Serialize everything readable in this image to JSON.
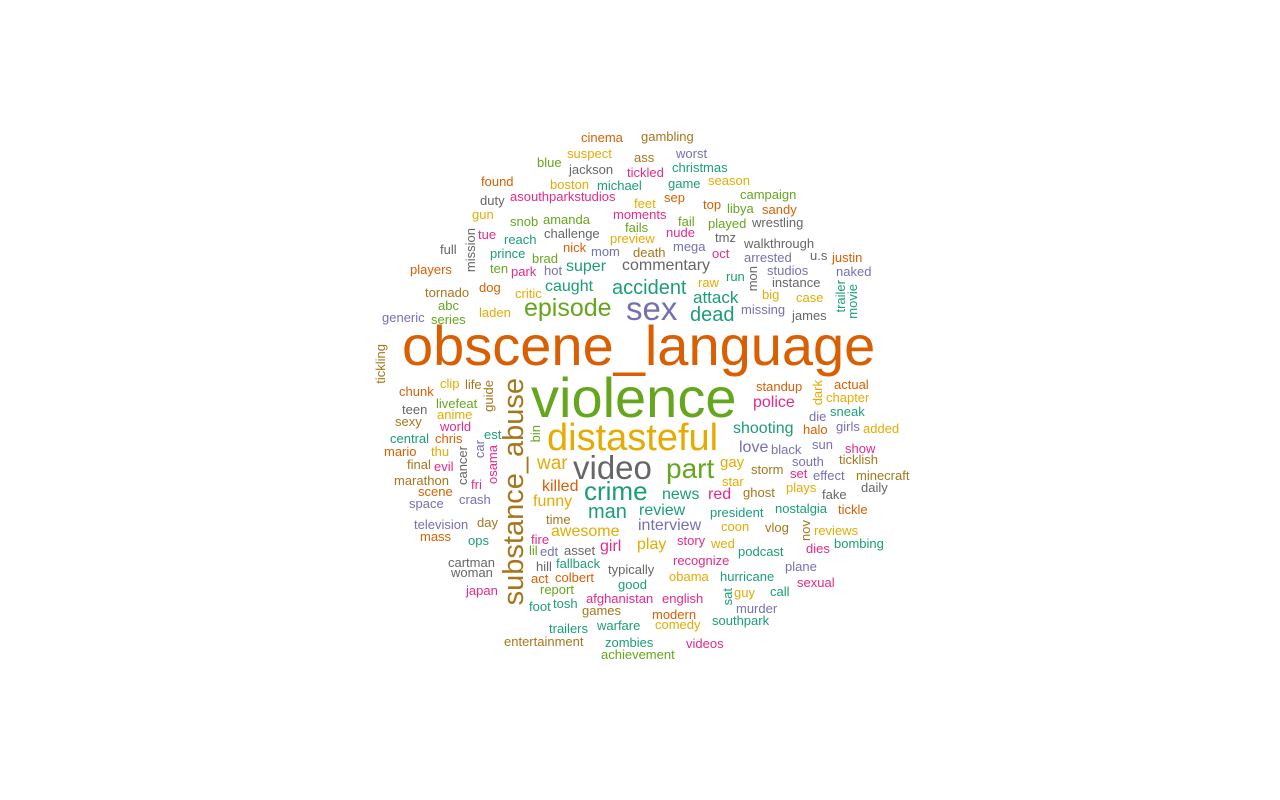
{
  "palette": {
    "orange": "#d95f02",
    "green": "#66a61e",
    "purple": "#7570b3",
    "gold": "#e6ab02",
    "teal": "#1b9e77",
    "pink": "#e7298a",
    "brown": "#a6761d",
    "gray": "#666666"
  },
  "words": [
    {
      "text": "obscene_language",
      "c": "orange"
    },
    {
      "text": "violence",
      "c": "green"
    },
    {
      "text": "distasteful",
      "c": "gold"
    },
    {
      "text": "substance_abuse",
      "c": "brown"
    },
    {
      "text": "video",
      "c": "gray"
    },
    {
      "text": "sex",
      "c": "purple"
    },
    {
      "text": "part",
      "c": "green"
    },
    {
      "text": "crime",
      "c": "teal"
    },
    {
      "text": "episode",
      "c": "green"
    },
    {
      "text": "accident",
      "c": "teal"
    },
    {
      "text": "man",
      "c": "teal"
    },
    {
      "text": "dead",
      "c": "teal"
    },
    {
      "text": "war",
      "c": "gold"
    },
    {
      "text": "commentary",
      "c": "gray"
    },
    {
      "text": "attack",
      "c": "teal"
    },
    {
      "text": "caught",
      "c": "teal"
    },
    {
      "text": "super",
      "c": "teal"
    },
    {
      "text": "killed",
      "c": "orange"
    },
    {
      "text": "funny",
      "c": "gold"
    },
    {
      "text": "awesome",
      "c": "gold"
    },
    {
      "text": "interview",
      "c": "purple"
    },
    {
      "text": "review",
      "c": "teal"
    },
    {
      "text": "news",
      "c": "teal"
    },
    {
      "text": "red",
      "c": "pink"
    },
    {
      "text": "girl",
      "c": "pink"
    },
    {
      "text": "play",
      "c": "gold"
    },
    {
      "text": "police",
      "c": "pink"
    },
    {
      "text": "shooting",
      "c": "teal"
    },
    {
      "text": "love",
      "c": "purple"
    },
    {
      "text": "gay",
      "c": "gold"
    },
    {
      "text": "cinema",
      "c": "orange"
    },
    {
      "text": "gambling",
      "c": "brown"
    },
    {
      "text": "blue",
      "c": "green"
    },
    {
      "text": "suspect",
      "c": "gold"
    },
    {
      "text": "ass",
      "c": "brown"
    },
    {
      "text": "worst",
      "c": "purple"
    },
    {
      "text": "jackson",
      "c": "gray"
    },
    {
      "text": "tickled",
      "c": "pink"
    },
    {
      "text": "christmas",
      "c": "teal"
    },
    {
      "text": "found",
      "c": "orange"
    },
    {
      "text": "boston",
      "c": "gold"
    },
    {
      "text": "michael",
      "c": "teal"
    },
    {
      "text": "game",
      "c": "teal"
    },
    {
      "text": "season",
      "c": "gold"
    },
    {
      "text": "duty",
      "c": "gray"
    },
    {
      "text": "asouthparkstudios",
      "c": "pink"
    },
    {
      "text": "sep",
      "c": "orange"
    },
    {
      "text": "campaign",
      "c": "green"
    },
    {
      "text": "gun",
      "c": "gold"
    },
    {
      "text": "feet",
      "c": "gold"
    },
    {
      "text": "top",
      "c": "orange"
    },
    {
      "text": "sandy",
      "c": "orange"
    },
    {
      "text": "snob",
      "c": "green"
    },
    {
      "text": "amanda",
      "c": "green"
    },
    {
      "text": "moments",
      "c": "pink"
    },
    {
      "text": "libya",
      "c": "green"
    },
    {
      "text": "fail",
      "c": "green"
    },
    {
      "text": "played",
      "c": "green"
    },
    {
      "text": "wrestling",
      "c": "gray"
    },
    {
      "text": "tue",
      "c": "pink"
    },
    {
      "text": "challenge",
      "c": "gray"
    },
    {
      "text": "fails",
      "c": "green"
    },
    {
      "text": "nude",
      "c": "pink"
    },
    {
      "text": "reach",
      "c": "teal"
    },
    {
      "text": "preview",
      "c": "gold"
    },
    {
      "text": "tmz",
      "c": "gray"
    },
    {
      "text": "full",
      "c": "gray"
    },
    {
      "text": "mission",
      "c": "gray"
    },
    {
      "text": "nick",
      "c": "orange"
    },
    {
      "text": "mega",
      "c": "purple"
    },
    {
      "text": "walkthrough",
      "c": "gray"
    },
    {
      "text": "prince",
      "c": "teal"
    },
    {
      "text": "brad",
      "c": "green"
    },
    {
      "text": "mom",
      "c": "purple"
    },
    {
      "text": "death",
      "c": "brown"
    },
    {
      "text": "oct",
      "c": "pink"
    },
    {
      "text": "arrested",
      "c": "purple"
    },
    {
      "text": "u.s",
      "c": "gray"
    },
    {
      "text": "justin",
      "c": "orange"
    },
    {
      "text": "players",
      "c": "orange"
    },
    {
      "text": "ten",
      "c": "green"
    },
    {
      "text": "park",
      "c": "pink"
    },
    {
      "text": "hot",
      "c": "purple"
    },
    {
      "text": "run",
      "c": "teal"
    },
    {
      "text": "studios",
      "c": "purple"
    },
    {
      "text": "naked",
      "c": "purple"
    },
    {
      "text": "mon",
      "c": "gray"
    },
    {
      "text": "raw",
      "c": "gold"
    },
    {
      "text": "instance",
      "c": "gray"
    },
    {
      "text": "tornado",
      "c": "brown"
    },
    {
      "text": "dog",
      "c": "orange"
    },
    {
      "text": "critic",
      "c": "gold"
    },
    {
      "text": "big",
      "c": "gold"
    },
    {
      "text": "case",
      "c": "gold"
    },
    {
      "text": "trailer",
      "c": "teal"
    },
    {
      "text": "movie",
      "c": "teal"
    },
    {
      "text": "abc",
      "c": "green"
    },
    {
      "text": "missing",
      "c": "purple"
    },
    {
      "text": "james",
      "c": "gray"
    },
    {
      "text": "generic",
      "c": "purple"
    },
    {
      "text": "series",
      "c": "green"
    },
    {
      "text": "laden",
      "c": "gold"
    },
    {
      "text": "tickling",
      "c": "brown"
    },
    {
      "text": "clip",
      "c": "gold"
    },
    {
      "text": "life",
      "c": "brown"
    },
    {
      "text": "standup",
      "c": "orange"
    },
    {
      "text": "actual",
      "c": "orange"
    },
    {
      "text": "chunk",
      "c": "orange"
    },
    {
      "text": "guide",
      "c": "brown"
    },
    {
      "text": "dark",
      "c": "gold"
    },
    {
      "text": "chapter",
      "c": "gold"
    },
    {
      "text": "livefeat",
      "c": "green"
    },
    {
      "text": "die",
      "c": "purple"
    },
    {
      "text": "sneak",
      "c": "teal"
    },
    {
      "text": "teen",
      "c": "gray"
    },
    {
      "text": "anime",
      "c": "gold"
    },
    {
      "text": "girls",
      "c": "purple"
    },
    {
      "text": "added",
      "c": "gold"
    },
    {
      "text": "sexy",
      "c": "brown"
    },
    {
      "text": "world",
      "c": "pink"
    },
    {
      "text": "halo",
      "c": "orange"
    },
    {
      "text": "bin",
      "c": "green"
    },
    {
      "text": "central",
      "c": "teal"
    },
    {
      "text": "chris",
      "c": "orange"
    },
    {
      "text": "est",
      "c": "teal"
    },
    {
      "text": "sun",
      "c": "purple"
    },
    {
      "text": "show",
      "c": "pink"
    },
    {
      "text": "black",
      "c": "purple"
    },
    {
      "text": "mario",
      "c": "orange"
    },
    {
      "text": "thu",
      "c": "gold"
    },
    {
      "text": "car",
      "c": "purple"
    },
    {
      "text": "ticklish",
      "c": "brown"
    },
    {
      "text": "final",
      "c": "brown"
    },
    {
      "text": "evil",
      "c": "pink"
    },
    {
      "text": "cancer",
      "c": "gray"
    },
    {
      "text": "osama",
      "c": "pink"
    },
    {
      "text": "south",
      "c": "purple"
    },
    {
      "text": "storm",
      "c": "brown"
    },
    {
      "text": "minecraft",
      "c": "brown"
    },
    {
      "text": "marathon",
      "c": "brown"
    },
    {
      "text": "star",
      "c": "gold"
    },
    {
      "text": "effect",
      "c": "purple"
    },
    {
      "text": "set",
      "c": "pink"
    },
    {
      "text": "scene",
      "c": "orange"
    },
    {
      "text": "fri",
      "c": "pink"
    },
    {
      "text": "plays",
      "c": "gold"
    },
    {
      "text": "daily",
      "c": "gray"
    },
    {
      "text": "ghost",
      "c": "brown"
    },
    {
      "text": "fake",
      "c": "gray"
    },
    {
      "text": "space",
      "c": "purple"
    },
    {
      "text": "crash",
      "c": "purple"
    },
    {
      "text": "president",
      "c": "teal"
    },
    {
      "text": "nostalgia",
      "c": "teal"
    },
    {
      "text": "tickle",
      "c": "orange"
    },
    {
      "text": "time",
      "c": "brown"
    },
    {
      "text": "coon",
      "c": "gold"
    },
    {
      "text": "vlog",
      "c": "brown"
    },
    {
      "text": "nov",
      "c": "brown"
    },
    {
      "text": "reviews",
      "c": "gold"
    },
    {
      "text": "television",
      "c": "purple"
    },
    {
      "text": "day",
      "c": "brown"
    },
    {
      "text": "mass",
      "c": "orange"
    },
    {
      "text": "ops",
      "c": "teal"
    },
    {
      "text": "fire",
      "c": "pink"
    },
    {
      "text": "story",
      "c": "pink"
    },
    {
      "text": "wed",
      "c": "gold"
    },
    {
      "text": "bombing",
      "c": "teal"
    },
    {
      "text": "lil",
      "c": "green"
    },
    {
      "text": "edt",
      "c": "purple"
    },
    {
      "text": "asset",
      "c": "gray"
    },
    {
      "text": "podcast",
      "c": "teal"
    },
    {
      "text": "dies",
      "c": "pink"
    },
    {
      "text": "cartman",
      "c": "gray"
    },
    {
      "text": "fallback",
      "c": "teal"
    },
    {
      "text": "recognize",
      "c": "pink"
    },
    {
      "text": "woman",
      "c": "gray"
    },
    {
      "text": "hill",
      "c": "gray"
    },
    {
      "text": "typically",
      "c": "gray"
    },
    {
      "text": "plane",
      "c": "purple"
    },
    {
      "text": "act",
      "c": "orange"
    },
    {
      "text": "colbert",
      "c": "orange"
    },
    {
      "text": "obama",
      "c": "gold"
    },
    {
      "text": "hurricane",
      "c": "teal"
    },
    {
      "text": "sexual",
      "c": "pink"
    },
    {
      "text": "japan",
      "c": "pink"
    },
    {
      "text": "report",
      "c": "green"
    },
    {
      "text": "good",
      "c": "teal"
    },
    {
      "text": "sat",
      "c": "teal"
    },
    {
      "text": "guy",
      "c": "gold"
    },
    {
      "text": "call",
      "c": "teal"
    },
    {
      "text": "foot",
      "c": "teal"
    },
    {
      "text": "tosh",
      "c": "teal"
    },
    {
      "text": "afghanistan",
      "c": "pink"
    },
    {
      "text": "english",
      "c": "pink"
    },
    {
      "text": "games",
      "c": "brown"
    },
    {
      "text": "murder",
      "c": "purple"
    },
    {
      "text": "modern",
      "c": "orange"
    },
    {
      "text": "southpark",
      "c": "teal"
    },
    {
      "text": "trailers",
      "c": "teal"
    },
    {
      "text": "warfare",
      "c": "teal"
    },
    {
      "text": "comedy",
      "c": "gold"
    },
    {
      "text": "entertainment",
      "c": "brown"
    },
    {
      "text": "zombies",
      "c": "teal"
    },
    {
      "text": "videos",
      "c": "pink"
    },
    {
      "text": "achievement",
      "c": "green"
    }
  ]
}
